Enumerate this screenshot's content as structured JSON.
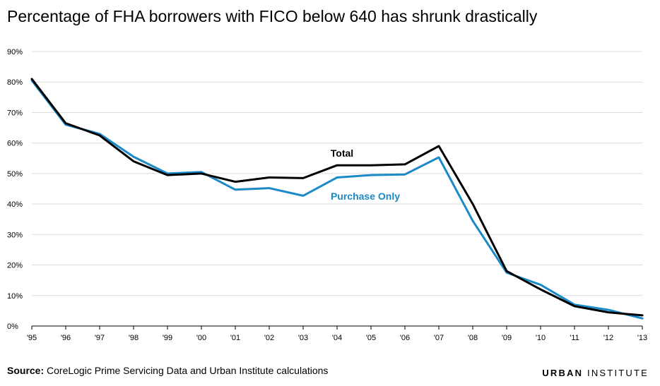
{
  "title": "Percentage of FHA borrowers with FICO below 640 has shrunk drastically",
  "source_label": "Source:",
  "source_text": "CoreLogic Prime Servicing Data and Urban Institute calculations",
  "brand": {
    "part1": "URBAN",
    "part2": "INSTITUTE"
  },
  "colors": {
    "total": "#000000",
    "purchase": "#1a8ac8",
    "grid": "#dcdcdc",
    "text": "#000000"
  },
  "chart_data": {
    "type": "line",
    "title": "Percentage of FHA borrowers with FICO below 640 has shrunk drastically",
    "xlabel": "",
    "ylabel": "",
    "categories": [
      "'95",
      "'96",
      "'97",
      "'98",
      "'99",
      "'00",
      "'01",
      "'02",
      "'03",
      "'04",
      "'05",
      "'06",
      "'07",
      "'08",
      "'09",
      "'10",
      "'11",
      "'12",
      "'13"
    ],
    "yticks": [
      "0%",
      "10%",
      "20%",
      "30%",
      "40%",
      "50%",
      "60%",
      "70%",
      "80%",
      "90%"
    ],
    "ylim": [
      0,
      90
    ],
    "grid": true,
    "series": [
      {
        "name": "Total",
        "color": "#000000",
        "values": [
          81,
          66.5,
          62.5,
          54,
          49.5,
          50,
          47.3,
          48.7,
          48.5,
          52.7,
          52.7,
          53,
          59,
          40,
          18,
          12,
          6.5,
          4.5,
          3.5
        ]
      },
      {
        "name": "Purchase Only",
        "color": "#1a8ac8",
        "values": [
          80.5,
          66,
          63,
          55.5,
          50,
          50.5,
          44.7,
          45.2,
          42.7,
          48.7,
          49.5,
          49.7,
          55.3,
          34.5,
          17.5,
          13.5,
          7,
          5.3,
          2.5
        ]
      }
    ]
  }
}
